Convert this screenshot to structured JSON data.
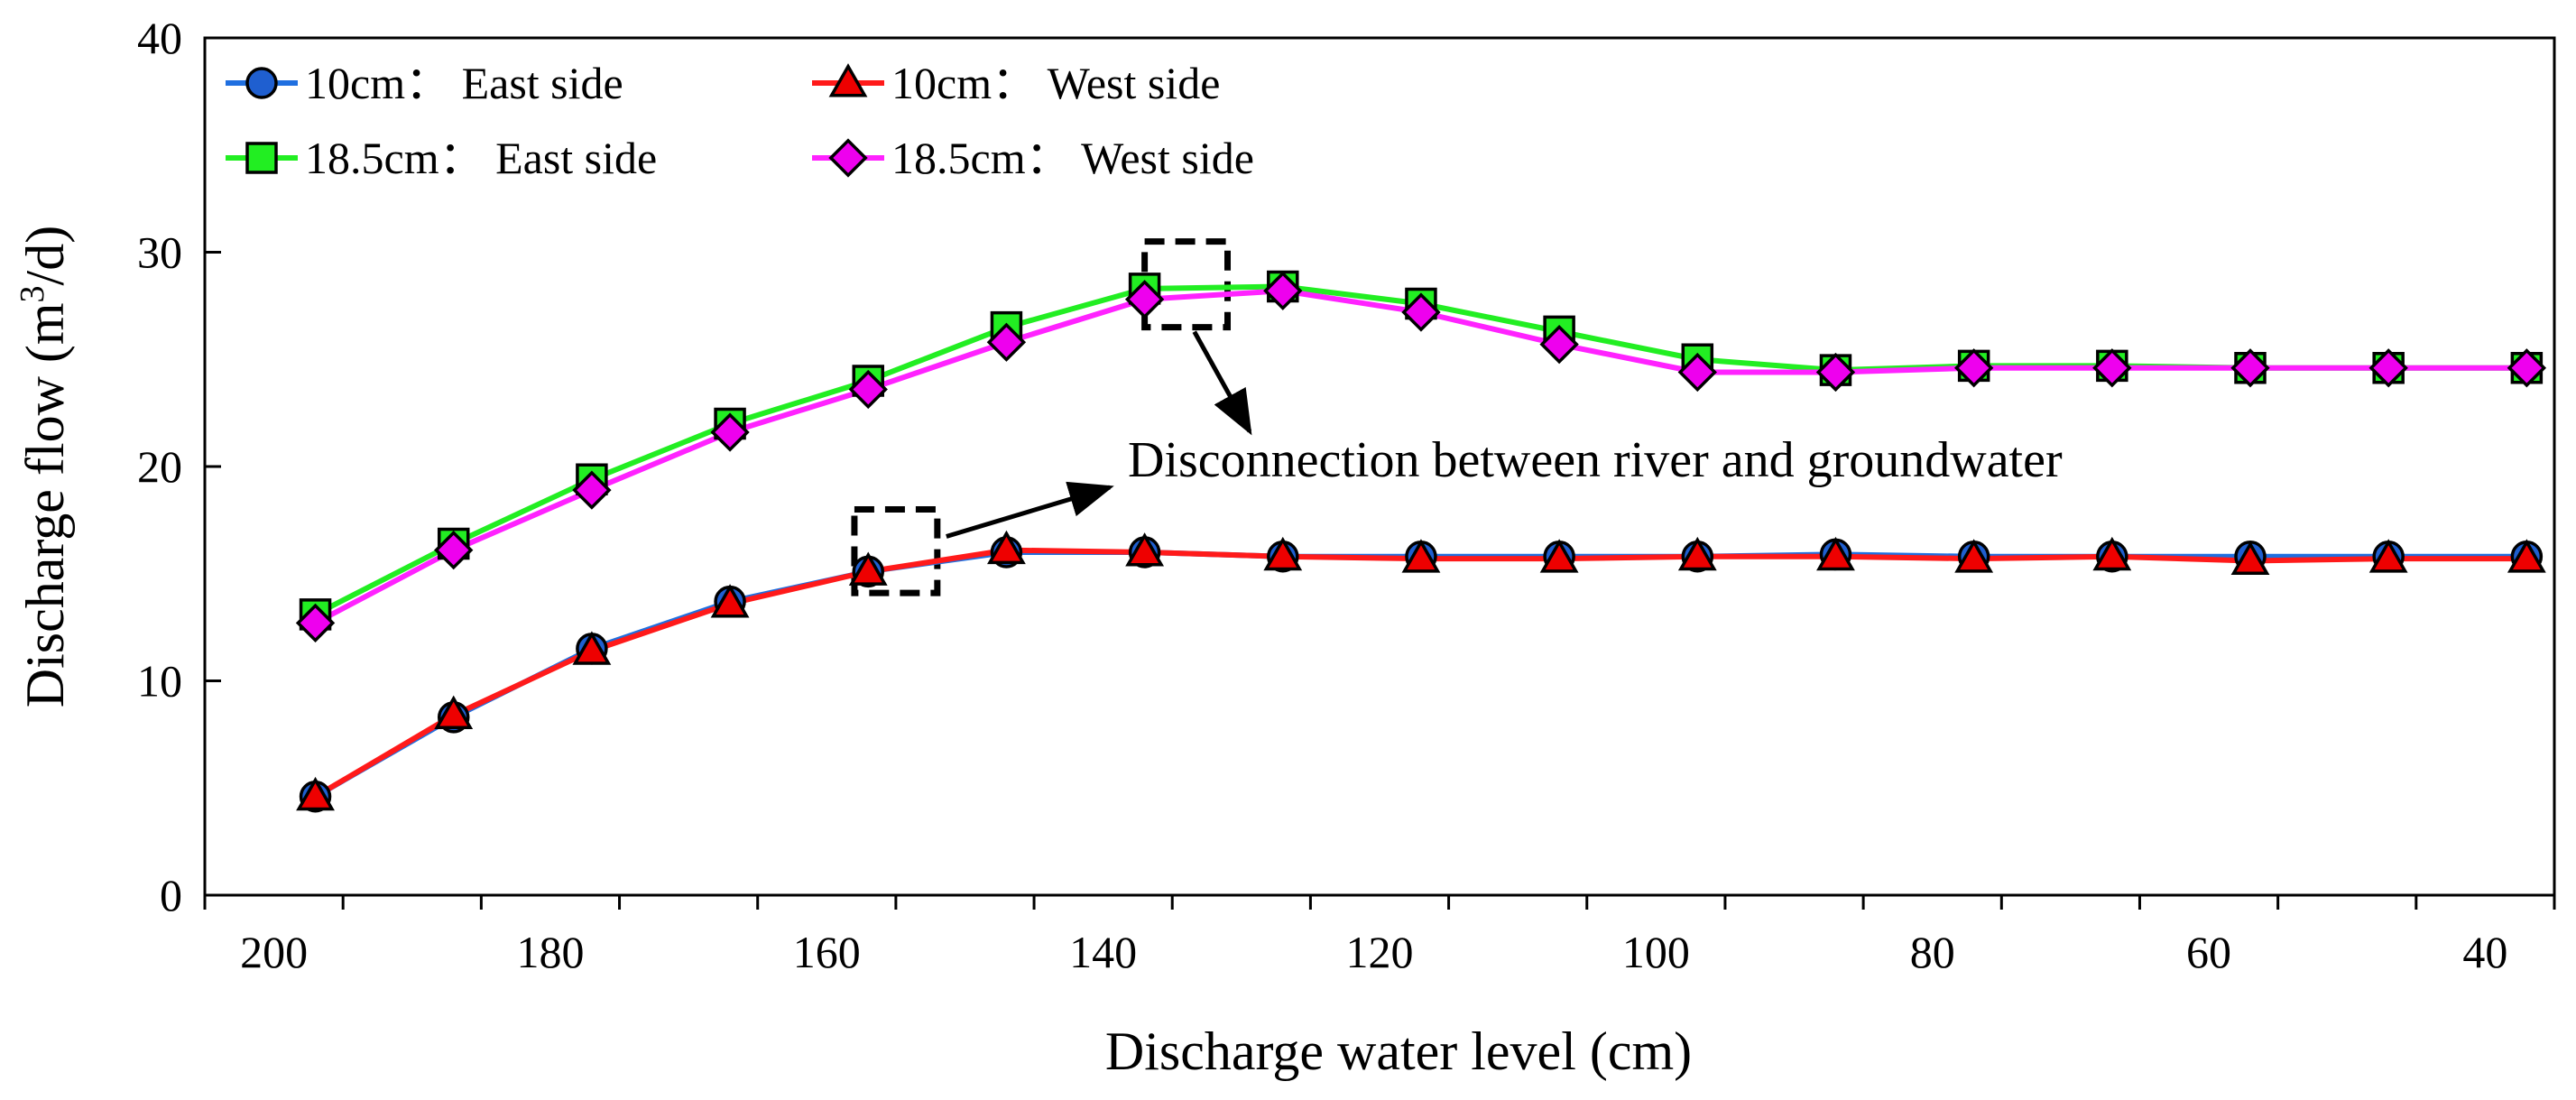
{
  "chart_data": {
    "type": "line",
    "title": "",
    "xlabel": "Discharge water level (cm)",
    "ylabel_main": "Discharge flow (m",
    "ylabel_sup": "3",
    "ylabel_tail": "/d)",
    "ylim": [
      0,
      40
    ],
    "xlim": [
      205,
      35
    ],
    "x_reversed": true,
    "yticks": [
      0,
      10,
      20,
      30,
      40
    ],
    "xticks": [
      200,
      180,
      160,
      140,
      120,
      100,
      80,
      60,
      40
    ],
    "x_minor_ticks": [
      205,
      195,
      185,
      175,
      165,
      155,
      145,
      135,
      125,
      115,
      105,
      95,
      85,
      75,
      65,
      55,
      45,
      35
    ],
    "grid": false,
    "legend_position": "top-left",
    "x": [
      197,
      187,
      177,
      167,
      157,
      147,
      137,
      127,
      117,
      107,
      97,
      87,
      77,
      67,
      57,
      47,
      37
    ],
    "series": [
      {
        "name": "10cm： East side",
        "color": "#1f6fe0",
        "marker": "circle",
        "marker_color": "#1f5fd0",
        "values": [
          4.6,
          8.3,
          11.5,
          13.7,
          15.1,
          16.0,
          16.0,
          15.8,
          15.8,
          15.8,
          15.8,
          15.9,
          15.8,
          15.8,
          15.8,
          15.8,
          15.8
        ]
      },
      {
        "name": "10cm： West side",
        "color": "#ff1a1a",
        "marker": "triangle",
        "marker_color": "#ee0000",
        "values": [
          4.6,
          8.4,
          11.4,
          13.6,
          15.1,
          16.1,
          16.0,
          15.8,
          15.7,
          15.7,
          15.8,
          15.8,
          15.7,
          15.8,
          15.6,
          15.7,
          15.7
        ]
      },
      {
        "name": "18.5cm： East side",
        "color": "#22ee22",
        "marker": "square",
        "marker_color": "#22ee22",
        "values": [
          13.1,
          16.4,
          19.4,
          22.0,
          24.0,
          26.5,
          28.3,
          28.4,
          27.6,
          26.3,
          25.0,
          24.5,
          24.7,
          24.7,
          24.6,
          24.6,
          24.6
        ]
      },
      {
        "name": "18.5cm： West side",
        "color": "#ff22ff",
        "marker": "diamond",
        "marker_color": "#ee00ee",
        "values": [
          12.7,
          16.1,
          18.9,
          21.6,
          23.6,
          25.8,
          27.8,
          28.2,
          27.2,
          25.7,
          24.4,
          24.4,
          24.6,
          24.6,
          24.6,
          24.6,
          24.6
        ]
      }
    ],
    "annotations": [
      {
        "text": "Disconnection between river and groundwater",
        "box1": {
          "x_range": [
            158,
            152
          ],
          "y_range": [
            14.1,
            18.0
          ]
        },
        "box2": {
          "x_range": [
            137,
            131
          ],
          "y_range": [
            26.5,
            30.5
          ]
        }
      }
    ]
  }
}
